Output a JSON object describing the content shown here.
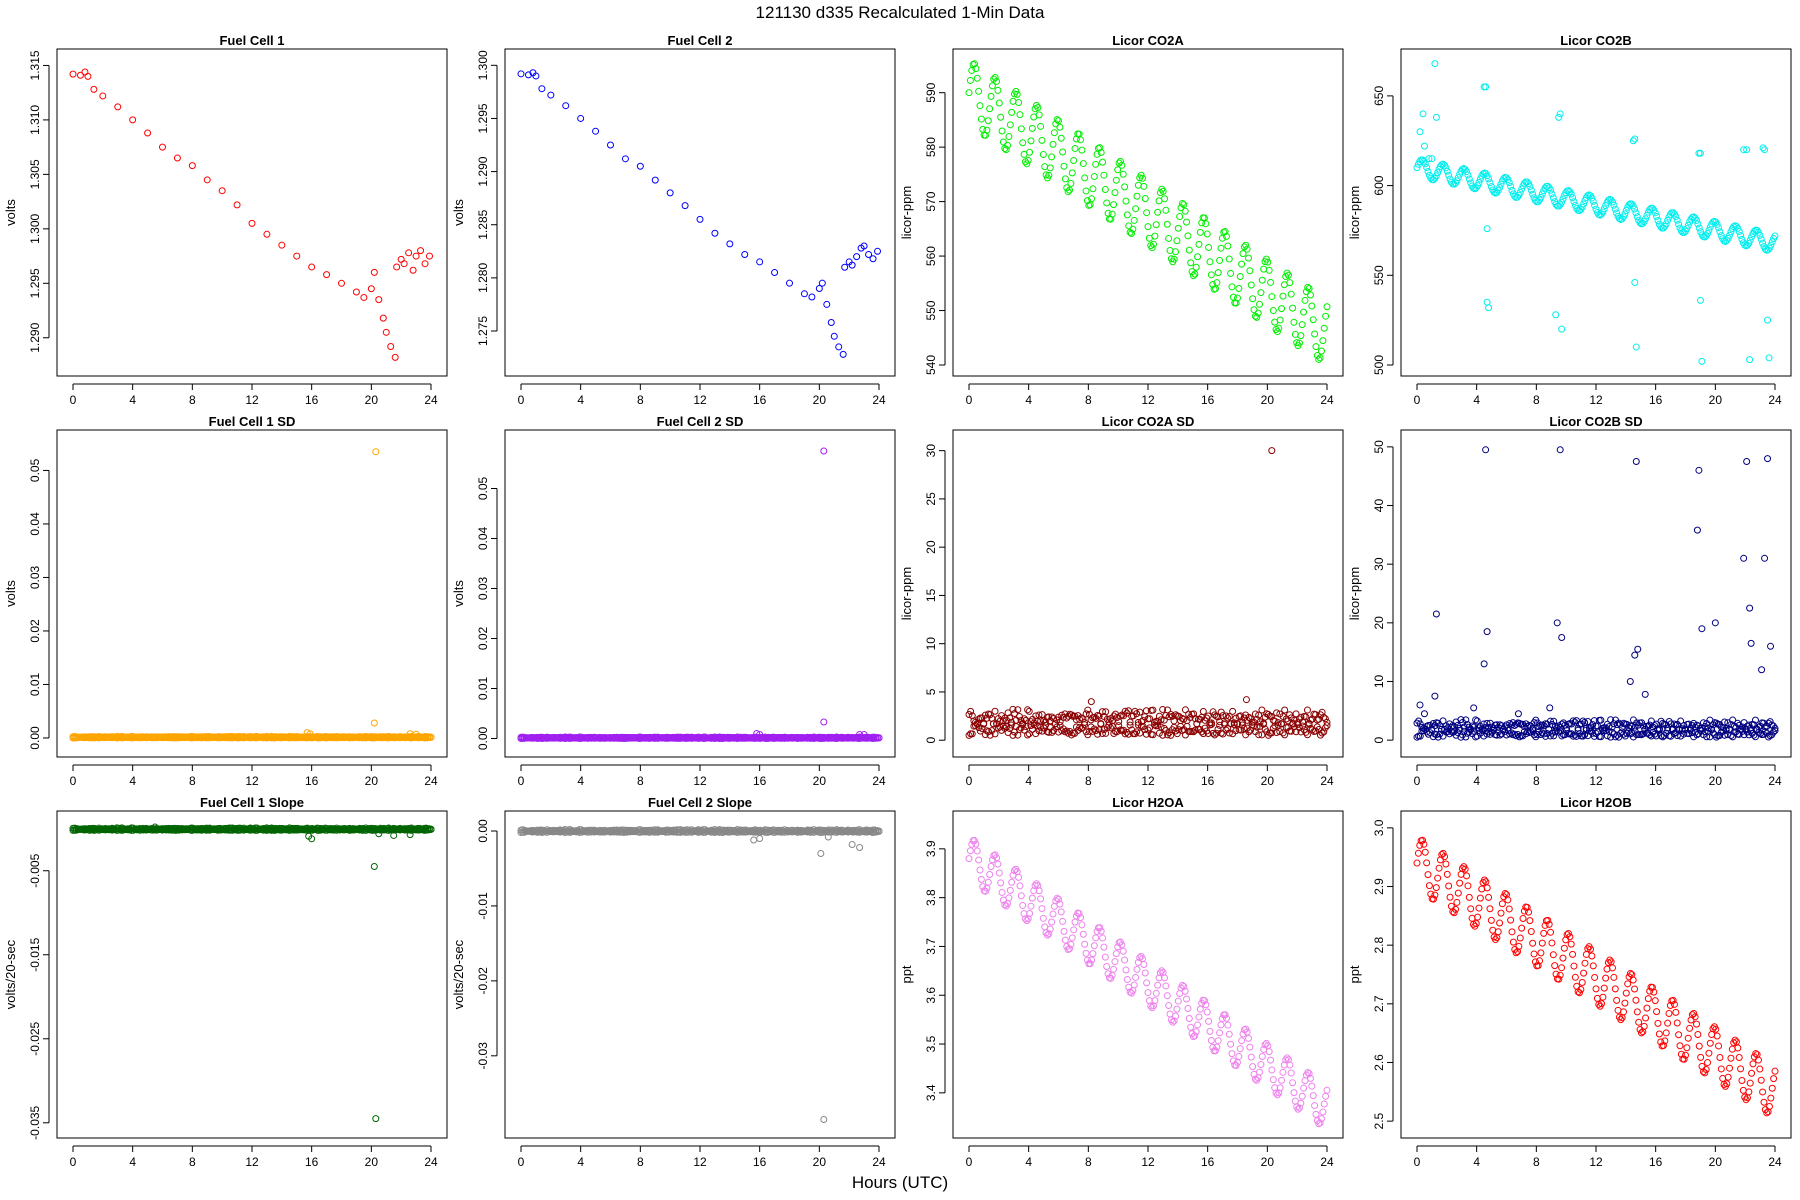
{
  "figure": {
    "title": "121130    d335    Recalculated 1-Min Data",
    "xlabel": "Hours (UTC)"
  },
  "chart_data": [
    {
      "type": "scatter",
      "title": "Fuel Cell 1",
      "xlabel": "",
      "ylabel": "volts",
      "xlim": [
        0,
        24
      ],
      "ylim": [
        1.2875,
        1.3155
      ],
      "xticks": [
        0,
        4,
        8,
        12,
        16,
        20,
        24
      ],
      "yticks": [
        1.29,
        1.295,
        1.3,
        1.305,
        1.31,
        1.315
      ],
      "yticklabels": [
        "1.290",
        "1.295",
        "1.300",
        "1.305",
        "1.310",
        "1.315"
      ],
      "color": "#ff0000",
      "series": [
        {
          "x": [
            0,
            0.5,
            0.8,
            1.0,
            1.4,
            2,
            3,
            4,
            5,
            6,
            7,
            8,
            9,
            10,
            11,
            12,
            13,
            14,
            15,
            16,
            17,
            18,
            19,
            19.5,
            20.0
          ],
          "y": [
            1.3142,
            1.3141,
            1.3144,
            1.314,
            1.3128,
            1.3122,
            1.3112,
            1.31,
            1.3088,
            1.3075,
            1.3065,
            1.3058,
            1.3045,
            1.3035,
            1.3022,
            1.3005,
            1.2995,
            1.2985,
            1.2975,
            1.2965,
            1.2958,
            1.295,
            1.2942,
            1.2937,
            1.2945
          ]
        },
        {
          "x": [
            20.2,
            20.5,
            20.8,
            21.0,
            21.3,
            21.6
          ],
          "y": [
            1.296,
            1.2935,
            1.2918,
            1.2905,
            1.2892,
            1.2882
          ]
        },
        {
          "x": [
            21.7,
            22.0,
            22.2,
            22.5,
            22.8,
            23.0,
            23.3,
            23.6,
            23.9
          ],
          "y": [
            1.2965,
            1.2972,
            1.2968,
            1.2978,
            1.2962,
            1.2975,
            1.298,
            1.2968,
            1.2975
          ]
        }
      ]
    },
    {
      "type": "scatter",
      "title": "Fuel Cell 2",
      "xlabel": "",
      "ylabel": "volts",
      "xlim": [
        0,
        24
      ],
      "ylim": [
        1.2718,
        1.3005
      ],
      "xticks": [
        0,
        4,
        8,
        12,
        16,
        20,
        24
      ],
      "yticks": [
        1.275,
        1.28,
        1.285,
        1.29,
        1.295,
        1.3
      ],
      "yticklabels": [
        "1.275",
        "1.280",
        "1.285",
        "1.290",
        "1.295",
        "1.300"
      ],
      "color": "#0000ff",
      "series": [
        {
          "x": [
            0,
            0.5,
            0.8,
            1.0,
            1.4,
            2,
            3,
            4,
            5,
            6,
            7,
            8,
            9,
            10,
            11,
            12,
            13,
            14,
            15,
            16,
            17,
            18,
            19,
            19.5,
            20.0
          ],
          "y": [
            1.2992,
            1.2991,
            1.2993,
            1.299,
            1.2978,
            1.2972,
            1.2962,
            1.295,
            1.2938,
            1.2925,
            1.2912,
            1.2905,
            1.2892,
            1.288,
            1.2868,
            1.2855,
            1.2842,
            1.2832,
            1.2822,
            1.2815,
            1.2805,
            1.2795,
            1.2785,
            1.2782,
            1.279
          ]
        },
        {
          "x": [
            20.2,
            20.5,
            20.8,
            21.0,
            21.3,
            21.6
          ],
          "y": [
            1.2795,
            1.2775,
            1.2758,
            1.2745,
            1.2735,
            1.2728
          ]
        },
        {
          "x": [
            21.7,
            22.0,
            22.2,
            22.5,
            22.8,
            23.0,
            23.3,
            23.6,
            23.9
          ],
          "y": [
            1.281,
            1.2815,
            1.2812,
            1.282,
            1.2828,
            1.283,
            1.2822,
            1.2818,
            1.2825
          ]
        }
      ]
    },
    {
      "type": "scatter",
      "title": "Licor CO2A",
      "xlabel": "",
      "ylabel": "licor-ppm",
      "xlim": [
        0,
        24
      ],
      "ylim": [
        540,
        596
      ],
      "xticks": [
        0,
        4,
        8,
        12,
        16,
        20,
        24
      ],
      "yticks": [
        540,
        550,
        560,
        570,
        580,
        590
      ],
      "yticklabels": [
        "540",
        "550",
        "560",
        "570",
        "580",
        "590"
      ],
      "color": "#00ee00",
      "series": [
        {
          "wave": {
            "x0": 0,
            "x1": 24,
            "y0": 590,
            "y1": 546,
            "amp": 6,
            "period": 1.4
          }
        }
      ]
    },
    {
      "type": "scatter",
      "title": "Licor CO2B",
      "xlabel": "",
      "ylabel": "licor-ppm",
      "xlim": [
        0,
        24
      ],
      "ylim": [
        500,
        670
      ],
      "xticks": [
        0,
        4,
        8,
        12,
        16,
        20,
        24
      ],
      "yticks": [
        500,
        550,
        600,
        650
      ],
      "yticklabels": [
        "500",
        "550",
        "600",
        "650"
      ],
      "color": "#00eeee",
      "series": [
        {
          "wave": {
            "x0": 0,
            "x1": 24,
            "y0": 610,
            "y1": 568,
            "amp": 5,
            "period": 1.4
          }
        },
        {
          "x": [
            0.2,
            0.4,
            0.5,
            0.8,
            1.0,
            1.2,
            1.3,
            4.5,
            4.6,
            4.7,
            4.7,
            4.8,
            9.3,
            9.5,
            9.6,
            9.7,
            14.5,
            14.6,
            14.6,
            14.7,
            18.9,
            19.0,
            19.0,
            19.1,
            21.9,
            22.1,
            22.3,
            23.2,
            23.3,
            23.5,
            23.6
          ],
          "y": [
            630,
            640,
            622,
            615,
            615,
            668,
            638,
            655,
            655,
            576,
            535,
            532,
            528,
            638,
            640,
            520,
            625,
            626,
            546,
            510,
            618,
            618,
            536,
            502,
            620,
            620,
            503,
            621,
            620,
            525,
            504
          ]
        }
      ]
    },
    {
      "type": "scatter",
      "title": "Fuel Cell 1 SD",
      "xlabel": "",
      "ylabel": "volts",
      "xlim": [
        0,
        24
      ],
      "ylim": [
        -0.0015,
        0.0555
      ],
      "xticks": [
        0,
        4,
        8,
        12,
        16,
        20,
        24
      ],
      "yticks": [
        0,
        0.01,
        0.02,
        0.03,
        0.04,
        0.05
      ],
      "yticklabels": [
        "0.00",
        "0.01",
        "0.02",
        "0.03",
        "0.04",
        "0.05"
      ],
      "color": "#ffa500",
      "series": [
        {
          "band": {
            "x0": 0,
            "x1": 24,
            "lo": 0,
            "hi": 0.0003
          }
        },
        {
          "x": [
            15.7,
            15.9,
            20.2,
            20.3,
            22.6,
            23.0
          ],
          "y": [
            0.001,
            0.0008,
            0.0028,
            0.0535,
            0.0008,
            0.0007
          ]
        }
      ]
    },
    {
      "type": "scatter",
      "title": "Fuel Cell 2 SD",
      "xlabel": "",
      "ylabel": "volts",
      "xlim": [
        0,
        24
      ],
      "ylim": [
        -0.0015,
        0.0595
      ],
      "xticks": [
        0,
        4,
        8,
        12,
        16,
        20,
        24
      ],
      "yticks": [
        0,
        0.01,
        0.02,
        0.03,
        0.04,
        0.05
      ],
      "yticklabels": [
        "0.00",
        "0.01",
        "0.02",
        "0.03",
        "0.04",
        "0.05"
      ],
      "color": "#a020f0",
      "series": [
        {
          "band": {
            "x0": 0,
            "x1": 24,
            "lo": 0,
            "hi": 0.0003
          }
        },
        {
          "x": [
            15.8,
            16.0,
            20.3,
            20.3,
            22.7,
            23.0
          ],
          "y": [
            0.001,
            0.0008,
            0.0033,
            0.0575,
            0.0008,
            0.0008
          ]
        }
      ]
    },
    {
      "type": "scatter",
      "title": "Licor CO2A SD",
      "xlabel": "",
      "ylabel": "licor-ppm",
      "xlim": [
        0,
        24
      ],
      "ylim": [
        -0.6,
        31
      ],
      "xticks": [
        0,
        4,
        8,
        12,
        16,
        20,
        24
      ],
      "yticks": [
        0,
        5,
        10,
        15,
        20,
        25,
        30
      ],
      "yticklabels": [
        "0",
        "5",
        "10",
        "15",
        "20",
        "25",
        "30"
      ],
      "color": "#8b0000",
      "series": [
        {
          "band": {
            "x0": 0,
            "x1": 24,
            "lo": 0.5,
            "hi": 3.2
          }
        },
        {
          "x": [
            8.2,
            18.6,
            20.3
          ],
          "y": [
            4.0,
            4.2,
            30
          ]
        }
      ]
    },
    {
      "type": "scatter",
      "title": "Licor CO2B SD",
      "xlabel": "",
      "ylabel": "licor-ppm",
      "xlim": [
        0,
        24
      ],
      "ylim": [
        -1,
        51
      ],
      "xticks": [
        0,
        4,
        8,
        12,
        16,
        20,
        24
      ],
      "yticks": [
        0,
        10,
        20,
        30,
        40,
        50
      ],
      "yticklabels": [
        "0",
        "10",
        "20",
        "30",
        "40",
        "50"
      ],
      "color": "#000080",
      "series": [
        {
          "band": {
            "x0": 0,
            "x1": 24,
            "lo": 0.5,
            "hi": 3.5
          }
        },
        {
          "x": [
            0.2,
            0.5,
            1.3,
            1.2,
            4.6,
            4.7,
            4.5,
            9.6,
            9.4,
            9.7,
            14.7,
            14.6,
            14.8,
            14.3,
            15.3,
            18.9,
            19.1,
            18.8,
            20.0,
            22.1,
            22.3,
            22.4,
            21.9,
            23.5,
            23.3,
            23.7,
            23.1,
            3.8,
            6.8,
            8.9
          ],
          "y": [
            6.0,
            4.5,
            21.5,
            7.5,
            49.5,
            18.5,
            13.0,
            49.5,
            20.0,
            17.5,
            47.5,
            14.5,
            15.5,
            10.0,
            7.8,
            46.0,
            19.0,
            35.8,
            20.0,
            47.5,
            22.5,
            16.5,
            31.0,
            48.0,
            31.0,
            16.0,
            12.0,
            5.5,
            4.5,
            5.5
          ]
        }
      ]
    },
    {
      "type": "scatter",
      "title": "Fuel Cell 1 Slope",
      "xlabel": "",
      "ylabel": "volts/20-sec",
      "xlim": [
        0,
        24
      ],
      "ylim": [
        -0.0355,
        0.0008
      ],
      "xticks": [
        0,
        4,
        8,
        12,
        16,
        20,
        24
      ],
      "yticks": [
        -0.005,
        -0.015,
        -0.025,
        -0.035
      ],
      "yticklabels": [
        "-0.005",
        "-0.015",
        "-0.025",
        "-0.035"
      ],
      "color": "#006400",
      "series": [
        {
          "band": {
            "x0": 0,
            "x1": 24,
            "lo": -0.0002,
            "hi": 0.0001
          }
        },
        {
          "x": [
            5.5,
            15.8,
            16.0,
            20.2,
            20.3,
            20.5,
            21.5,
            22.6
          ],
          "y": [
            0.0002,
            -0.0009,
            -0.0012,
            -0.0045,
            -0.0345,
            -0.0006,
            -0.0008,
            -0.0007
          ]
        }
      ]
    },
    {
      "type": "scatter",
      "title": "Fuel Cell 2 Slope",
      "xlabel": "",
      "ylabel": "volts/20-sec",
      "xlim": [
        0,
        24
      ],
      "ylim": [
        -0.0395,
        0.0012
      ],
      "xticks": [
        0,
        4,
        8,
        12,
        16,
        20,
        24
      ],
      "yticks": [
        0,
        -0.01,
        -0.02,
        -0.03
      ],
      "yticklabels": [
        "0.00",
        "-0.01",
        "-0.02",
        "-0.03"
      ],
      "color": "#888888",
      "series": [
        {
          "band": {
            "x0": 0,
            "x1": 24,
            "lo": -0.0002,
            "hi": 0.0002
          }
        },
        {
          "x": [
            15.6,
            16.0,
            20.1,
            20.3,
            20.6,
            22.7,
            22.2
          ],
          "y": [
            -0.0012,
            -0.001,
            -0.003,
            -0.0385,
            -0.0008,
            -0.0022,
            -0.0018
          ]
        }
      ]
    },
    {
      "type": "scatter",
      "title": "Licor H2OA",
      "xlabel": "",
      "ylabel": "ppt",
      "xlim": [
        0,
        24
      ],
      "ylim": [
        3.33,
        3.955
      ],
      "xticks": [
        0,
        4,
        8,
        12,
        16,
        20,
        24
      ],
      "yticks": [
        3.4,
        3.5,
        3.6,
        3.7,
        3.8,
        3.9
      ],
      "yticklabels": [
        "3.4",
        "3.5",
        "3.6",
        "3.7",
        "3.8",
        "3.9"
      ],
      "color": "#ee82ee",
      "series": [
        {
          "wave": {
            "x0": 0,
            "x1": 24,
            "y0": 3.88,
            "y1": 3.37,
            "amp": 0.045,
            "period": 1.4
          }
        }
      ]
    },
    {
      "type": "scatter",
      "title": "Licor H2OB",
      "xlabel": "",
      "ylabel": "ppt",
      "xlim": [
        0,
        24
      ],
      "ylim": [
        2.49,
        3.01
      ],
      "xticks": [
        0,
        4,
        8,
        12,
        16,
        20,
        24
      ],
      "yticks": [
        2.5,
        2.6,
        2.7,
        2.8,
        2.9,
        3.0
      ],
      "yticklabels": [
        "2.5",
        "2.6",
        "2.7",
        "2.8",
        "2.9",
        "3.0"
      ],
      "color": "#ff0000",
      "series": [
        {
          "wave": {
            "x0": 0,
            "x1": 24,
            "y0": 2.94,
            "y1": 2.55,
            "amp": 0.045,
            "period": 1.4
          }
        }
      ]
    }
  ]
}
